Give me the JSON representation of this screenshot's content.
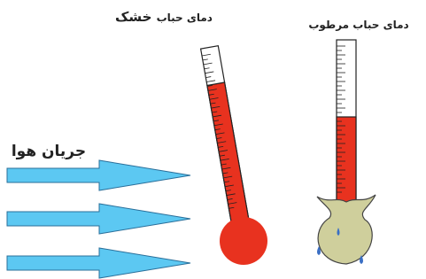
{
  "labels": {
    "dry_bulb": {
      "prefix": "دمای حباب",
      "emphasis": "خشک"
    },
    "wet_bulb": "دمای حباب مرطوب",
    "air_flow": "جریان هوا"
  }
}
